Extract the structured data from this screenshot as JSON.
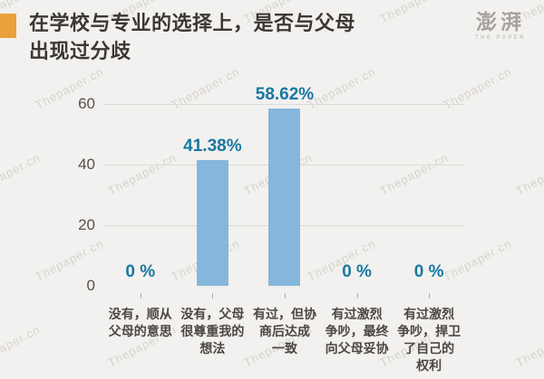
{
  "page": {
    "background": "#F2F1EF",
    "watermark_text": "Thepaper.cn"
  },
  "header": {
    "title": "在学校与专业的选择上，是否与父母\n出现过分歧",
    "accent_color": "#E9A23B",
    "logo_text": "澎湃",
    "logo_subtitle": "THE PAPER"
  },
  "chart_data": {
    "type": "bar",
    "title": "在学校与专业的选择上，是否与父母出现过分歧",
    "categories": [
      "没有，顺从父母的意思",
      "没有，父母很尊重我的想法",
      "有过，但协商后达成一致",
      "有过激烈争吵，最终向父母妥协",
      "有过激烈争吵，捍卫了自己的权利"
    ],
    "categories_wrapped": [
      "没有，顺从\n父母的意思",
      "没有，父母\n很尊重我的\n想法",
      "有过，但协\n商后达成\n一致",
      "有过激烈\n争吵，最终\n向父母妥协",
      "有过激烈\n争吵，捍卫\n了自己的\n权利"
    ],
    "values": [
      0,
      41.38,
      58.62,
      0,
      0
    ],
    "value_labels": [
      "0 %",
      "41.38%",
      "58.62%",
      "0 %",
      "0 %"
    ],
    "xlabel": "",
    "ylabel": "",
    "ylim": [
      0,
      60
    ],
    "yticks": [
      60,
      40,
      20,
      0
    ],
    "grid": true,
    "legend_position": "none",
    "bar_color": "#85B6DC",
    "value_label_color": "#1777A2",
    "gridline_color": "#DDDBD7"
  }
}
